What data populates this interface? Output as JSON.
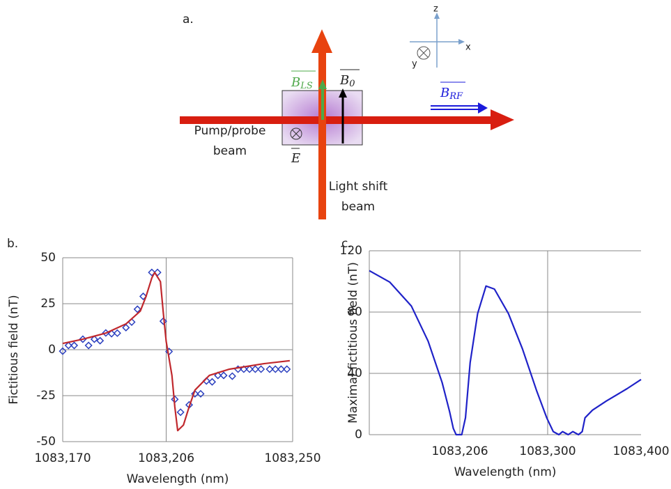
{
  "diagram": {
    "panel_label": "a.",
    "axes": {
      "z": "z",
      "x": "x",
      "y": "y"
    },
    "b_ls": {
      "symbol": "B",
      "subscript": "LS"
    },
    "b_0": {
      "symbol": "B",
      "subscript": "0"
    },
    "b_rf": {
      "symbol": "B",
      "subscript": "RF"
    },
    "e": "E",
    "pump_probe": [
      "Pump/probe",
      "beam"
    ],
    "light_shift": [
      "Light shift",
      "beam"
    ]
  },
  "chart_data": [
    {
      "type": "line",
      "panel_label": "b.",
      "x_label": "Wavelength (nm)",
      "y_label": "Fictitious field (nT)",
      "xlim": [
        1083.17,
        1083.25
      ],
      "xticks": [
        {
          "value": 1083.17,
          "label": "1083,170"
        },
        {
          "value": 1083.206,
          "label": "1083,206"
        },
        {
          "value": 1083.25,
          "label": "1083,250"
        }
      ],
      "ylim": [
        -50,
        50
      ],
      "yticks": [
        -50,
        -25,
        0,
        25,
        50
      ],
      "grid": true,
      "frame": true,
      "series": [
        {
          "mode": "markers",
          "marker": "diamond",
          "color": "#2b3fbf",
          "x": [
            1083.17,
            1083.172,
            1083.174,
            1083.177,
            1083.179,
            1083.181,
            1083.183,
            1083.185,
            1083.187,
            1083.189,
            1083.192,
            1083.194,
            1083.196,
            1083.198,
            1083.201,
            1083.203,
            1083.205,
            1083.207,
            1083.209,
            1083.211,
            1083.214,
            1083.216,
            1083.218,
            1083.22,
            1083.222,
            1083.224,
            1083.226,
            1083.229,
            1083.231,
            1083.233,
            1083.235,
            1083.237,
            1083.239,
            1083.242,
            1083.244,
            1083.246,
            1083.248
          ],
          "values": [
            -0.8,
            2.3,
            2.3,
            5.7,
            2.3,
            5.7,
            4.9,
            9.1,
            8.7,
            9,
            12,
            15,
            22,
            29,
            42,
            42,
            15.5,
            -1,
            -27,
            -34,
            -30,
            -24,
            -24,
            -17,
            -17.5,
            -14,
            -14,
            -14.4,
            -10.6,
            -10.6,
            -10.6,
            -10.6,
            -10.6,
            -10.6,
            -10.6,
            -10.6,
            -10.6
          ]
        },
        {
          "mode": "line",
          "color": "#c0282d",
          "x": [
            1083.17,
            1083.177,
            1083.185,
            1083.192,
            1083.197,
            1083.199,
            1083.201,
            1083.202,
            1083.204,
            1083.205,
            1083.206,
            1083.208,
            1083.209,
            1083.21,
            1083.212,
            1083.214,
            1083.216,
            1083.221,
            1083.228,
            1083.24,
            1083.249
          ],
          "values": [
            3.4,
            5.7,
            9,
            14,
            21,
            29,
            39,
            42,
            37,
            20,
            4.5,
            -14,
            -31,
            -44,
            -41,
            -31,
            -22,
            -14,
            -10.6,
            -7.6,
            -6
          ]
        }
      ]
    },
    {
      "type": "line",
      "panel_label": "c.",
      "x_label": "Wavelength (nm)",
      "y_label": "Maximal fictitious field (nT)",
      "xlim": [
        1083.109,
        1083.4
      ],
      "xticks": [
        {
          "value": 1083.206,
          "label": "1083,206"
        },
        {
          "value": 1083.3,
          "label": "1083,300"
        },
        {
          "value": 1083.4,
          "label": "1083,400"
        }
      ],
      "ylim": [
        0,
        120
      ],
      "yticks": [
        0,
        40,
        80,
        120
      ],
      "grid": true,
      "frame": false,
      "series": [
        {
          "mode": "line",
          "color": "#1f22c8",
          "x": [
            1083.109,
            1083.131,
            1083.154,
            1083.172,
            1083.187,
            1083.195,
            1083.199,
            1083.202,
            1083.208,
            1083.212,
            1083.217,
            1083.225,
            1083.234,
            1083.243,
            1083.258,
            1083.273,
            1083.288,
            1083.299,
            1083.306,
            1083.312,
            1083.316,
            1083.322,
            1083.327,
            1083.333,
            1083.337,
            1083.34,
            1083.348,
            1083.363,
            1083.385,
            1083.4
          ],
          "values": [
            107,
            99.5,
            84,
            61,
            34,
            15,
            4,
            0,
            0,
            11,
            47,
            79,
            97,
            95,
            79,
            56,
            29,
            11,
            2,
            0,
            2,
            0,
            2,
            0,
            2,
            11,
            16,
            22,
            30,
            36
          ]
        }
      ]
    }
  ]
}
